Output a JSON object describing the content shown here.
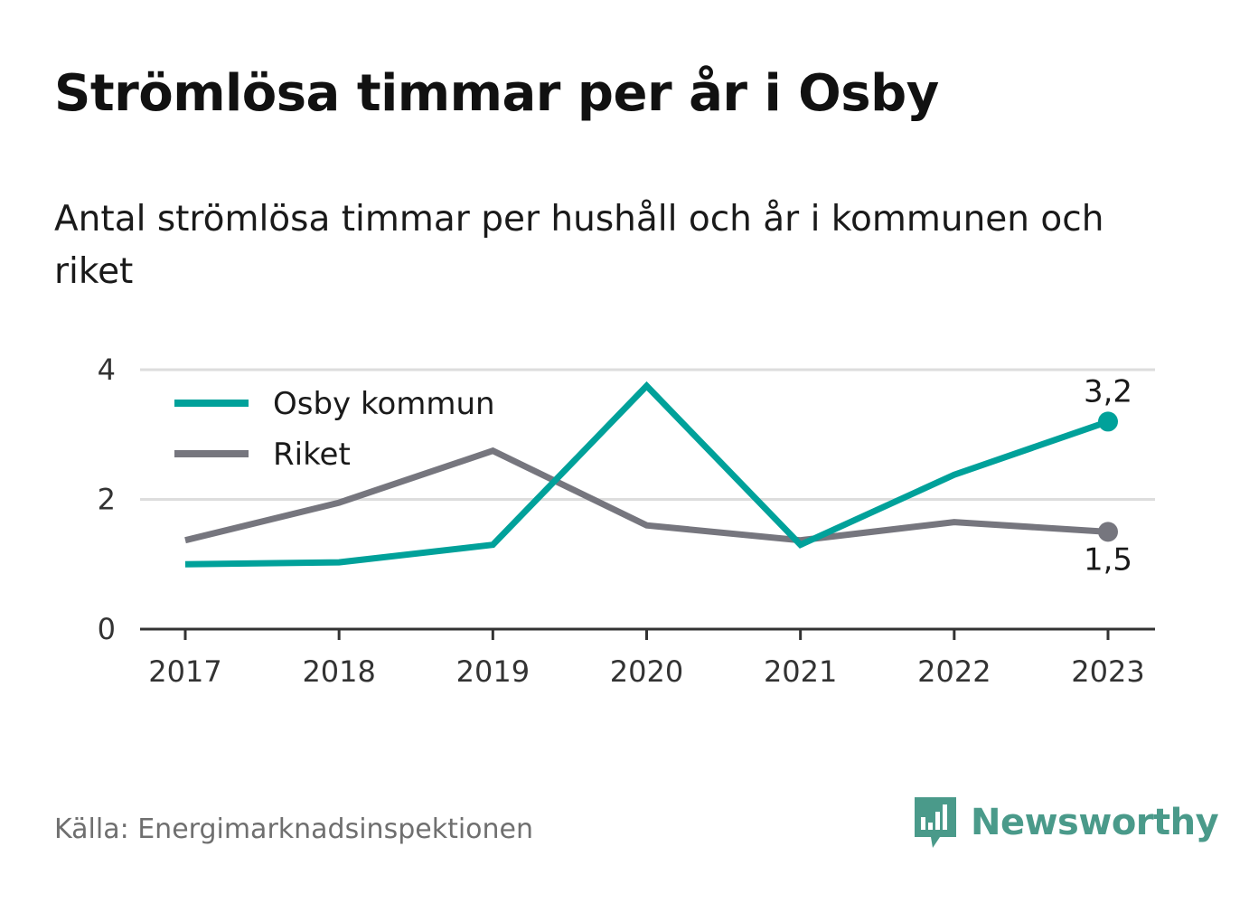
{
  "header": {
    "title": "Strömlösa timmar per år i Osby",
    "subtitle": "Antal strömlösa timmar per hushåll och år i kommunen och riket"
  },
  "footer": {
    "source": "Källa: Energimarknadsinspektionen",
    "brand": "Newsworthy"
  },
  "colors": {
    "osby": "#00a19a",
    "riket": "#76767e",
    "grid": "#dddddd",
    "axis": "#333333",
    "brand": "#4a9a8a"
  },
  "icons": {
    "logo": "newsworthy-bar-chart-logo-icon"
  },
  "chart_data": {
    "type": "line",
    "categories": [
      "2017",
      "2018",
      "2019",
      "2020",
      "2021",
      "2022",
      "2023"
    ],
    "series": [
      {
        "name": "Osby kommun",
        "color": "#00a19a",
        "values": [
          1.0,
          1.03,
          1.3,
          3.75,
          1.3,
          2.38,
          3.2
        ],
        "end_label": "3,2"
      },
      {
        "name": "Riket",
        "color": "#76767e",
        "values": [
          1.37,
          1.95,
          2.75,
          1.6,
          1.37,
          1.65,
          1.5
        ],
        "end_label": "1,5"
      }
    ],
    "yticks": [
      "0",
      "2",
      "4"
    ],
    "ylim": [
      0,
      4
    ],
    "grid": true,
    "legend": "top-left"
  }
}
